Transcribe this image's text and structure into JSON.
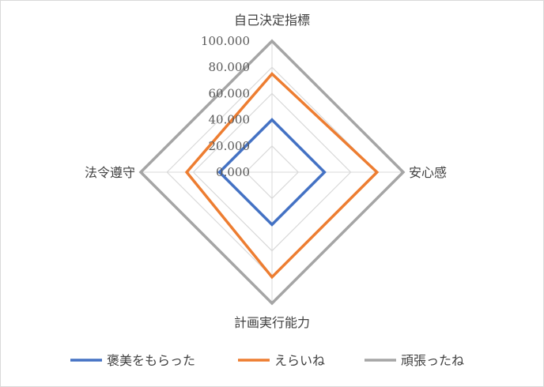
{
  "chart_data": {
    "type": "radar",
    "axes": [
      "自己決定指標",
      "安心感",
      "計画実行能力",
      "法令遵守"
    ],
    "rlim": [
      0,
      100
    ],
    "ticks": [
      "0.000",
      "20.000",
      "40.000",
      "60.000",
      "80.000",
      "100.000"
    ],
    "tick_values": [
      0,
      20,
      40,
      60,
      80,
      100
    ],
    "grid": true,
    "legend_position": "bottom",
    "series": [
      {
        "name": "褒美をもらった",
        "values": [
          40,
          40,
          40,
          40
        ],
        "color": "#4472c4"
      },
      {
        "name": "えらいね",
        "values": [
          75,
          80,
          80,
          65
        ],
        "color": "#ed7d31"
      },
      {
        "name": "頑張ったね",
        "values": [
          100,
          100,
          100,
          100
        ],
        "color": "#a5a5a5"
      }
    ]
  }
}
